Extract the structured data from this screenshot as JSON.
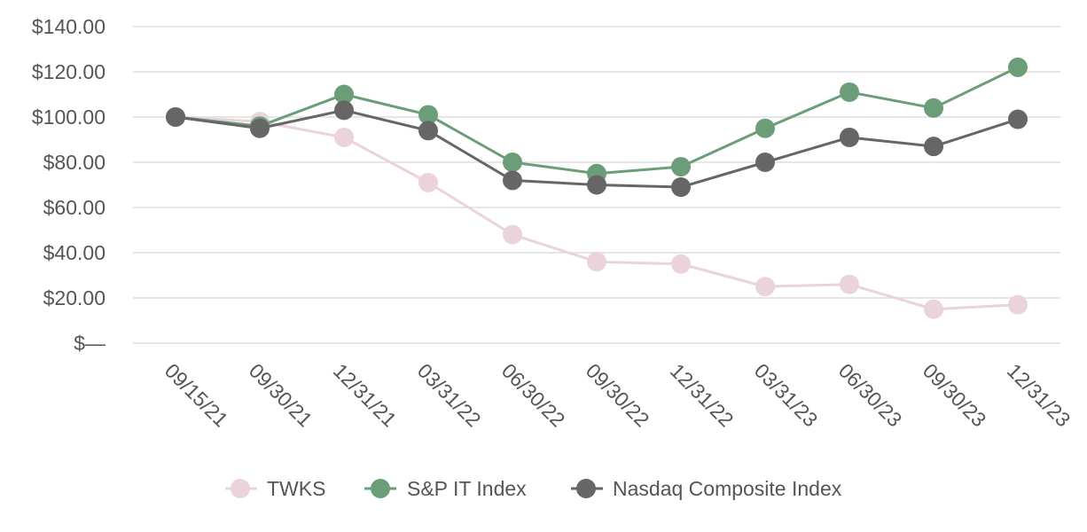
{
  "chart_data": {
    "type": "line",
    "title": "",
    "xlabel": "",
    "ylabel": "",
    "ylim": [
      0,
      140
    ],
    "y_ticks": [
      {
        "value": 0,
        "label": "$—"
      },
      {
        "value": 20,
        "label": "$20.00"
      },
      {
        "value": 40,
        "label": "$40.00"
      },
      {
        "value": 60,
        "label": "$60.00"
      },
      {
        "value": 80,
        "label": "$80.00"
      },
      {
        "value": 100,
        "label": "$100.00"
      },
      {
        "value": 120,
        "label": "$120.00"
      },
      {
        "value": 140,
        "label": "$140.00"
      }
    ],
    "categories": [
      "09/15/21",
      "09/30/21",
      "12/31/21",
      "03/31/22",
      "06/30/22",
      "09/30/22",
      "12/31/22",
      "03/31/23",
      "06/30/23",
      "09/30/23",
      "12/31/23"
    ],
    "grid": true,
    "legend_position": "bottom",
    "series": [
      {
        "name": "TWKS",
        "color": "#ead3dc",
        "values": [
          100,
          98,
          91,
          71,
          48,
          36,
          35,
          25,
          26,
          15,
          17
        ]
      },
      {
        "name": "S&P IT Index",
        "color": "#6b9e78",
        "values": [
          100,
          96,
          110,
          101,
          80,
          75,
          78,
          95,
          111,
          104,
          122
        ]
      },
      {
        "name": "Nasdaq Composite Index",
        "color": "#666666",
        "values": [
          100,
          95,
          103,
          94,
          72,
          70,
          69,
          80,
          91,
          87,
          99
        ]
      }
    ]
  }
}
